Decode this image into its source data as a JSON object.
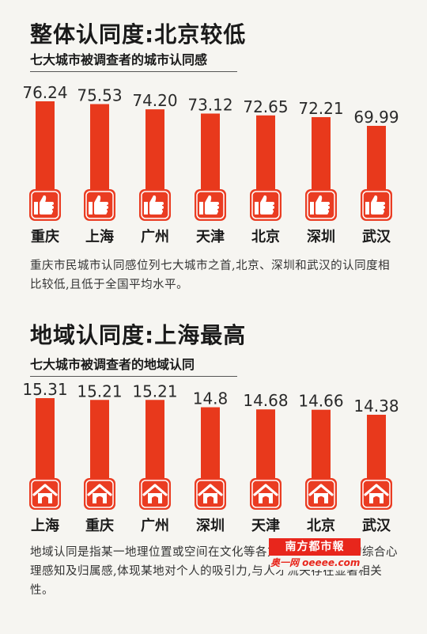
{
  "section1": {
    "title": "整体认同度:北京较低",
    "subtitle": "七大城市被调查者的城市认同感",
    "note": "重庆市民城市认同感位列七大城市之首,北京、深圳和武汉的认同度相比较低,且低于全国平均水平。"
  },
  "section2": {
    "title": "地域认同度:上海最高",
    "subtitle": "七大城市被调查者的地域认同",
    "note": "地域认同是指某一地理位置或空间在文化等各方面给人们带来的综合心理感知及归属感,体现某地对个人的吸引力,与人才流失存在显著相关性。"
  },
  "watermark": {
    "brand": "南方都市報",
    "url": "奥一网 oeeee.com"
  },
  "colors": {
    "bar": "#e8391c",
    "icon_bg": "#ea3c22",
    "icon_fg": "#ffffff"
  },
  "icons": {
    "chart1": "thumbs-up-icon",
    "chart2": "house-icon"
  },
  "chart_data": [
    {
      "type": "bar",
      "categories": [
        "重庆",
        "上海",
        "广州",
        "天津",
        "北京",
        "深圳",
        "武汉"
      ],
      "values": [
        76.24,
        75.53,
        74.2,
        73.12,
        72.65,
        72.21,
        69.99
      ],
      "value_labels": [
        "76.24",
        "75.53",
        "74.20",
        "73.12",
        "72.65",
        "72.21",
        "69.99"
      ]
    },
    {
      "type": "bar",
      "categories": [
        "上海",
        "重庆",
        "广州",
        "深圳",
        "天津",
        "北京",
        "武汉"
      ],
      "values": [
        15.31,
        15.21,
        15.21,
        14.8,
        14.68,
        14.66,
        14.38
      ],
      "value_labels": [
        "15.31",
        "15.21",
        "15.21",
        "14.8",
        "14.68",
        "14.66",
        "14.38"
      ]
    }
  ]
}
